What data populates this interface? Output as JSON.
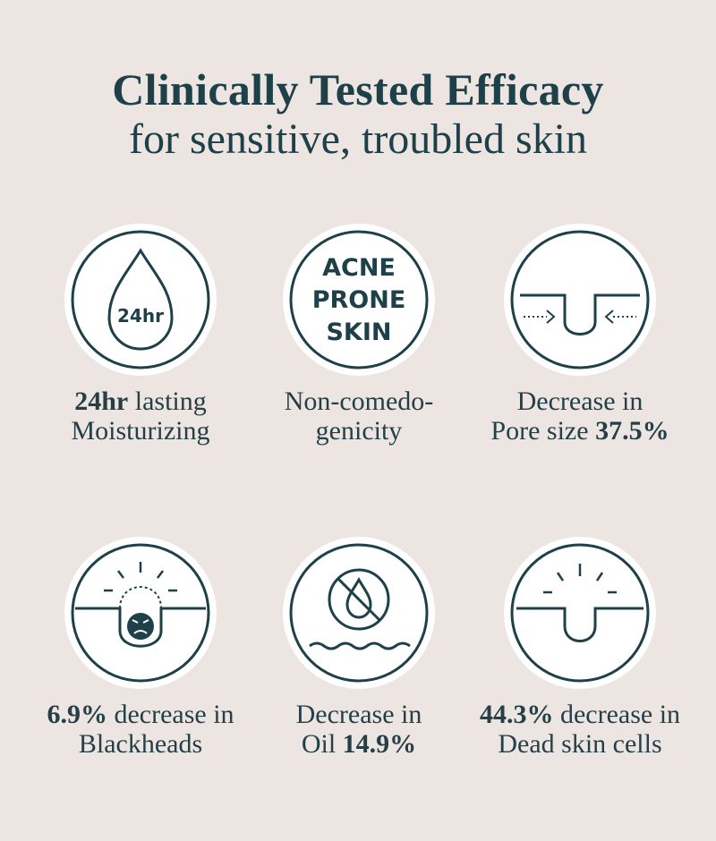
{
  "header": {
    "title": "Clinically Tested Efficacy",
    "subtitle": "for sensitive, troubled skin"
  },
  "colors": {
    "primary": "#1e4048",
    "background": "#ede5e2",
    "badge": "#ffffff"
  },
  "items": [
    {
      "icon": "droplet-24hr-icon",
      "icon_text": "24hr",
      "caption_bold": "24hr",
      "caption_rest": " lasting",
      "caption_line2": "Moisturizing"
    },
    {
      "icon": "acne-prone-skin-icon",
      "icon_lines": [
        "ACNE",
        "PRONE",
        "SKIN"
      ],
      "caption_line1": "Non-comedo-",
      "caption_line2": "genicity"
    },
    {
      "icon": "pore-shrink-icon",
      "caption_line1": "Decrease in",
      "caption_pre": "Pore size ",
      "caption_bold": "37.5%"
    },
    {
      "icon": "blackhead-icon",
      "caption_bold": "6.9%",
      "caption_rest": " decrease in",
      "caption_line2": "Blackheads"
    },
    {
      "icon": "no-oil-icon",
      "caption_line1": "Decrease in",
      "caption_pre": "Oil ",
      "caption_bold": "14.9%"
    },
    {
      "icon": "dead-skin-cells-icon",
      "caption_bold": "44.3%",
      "caption_rest": " decrease in",
      "caption_line2": "Dead skin cells"
    }
  ]
}
